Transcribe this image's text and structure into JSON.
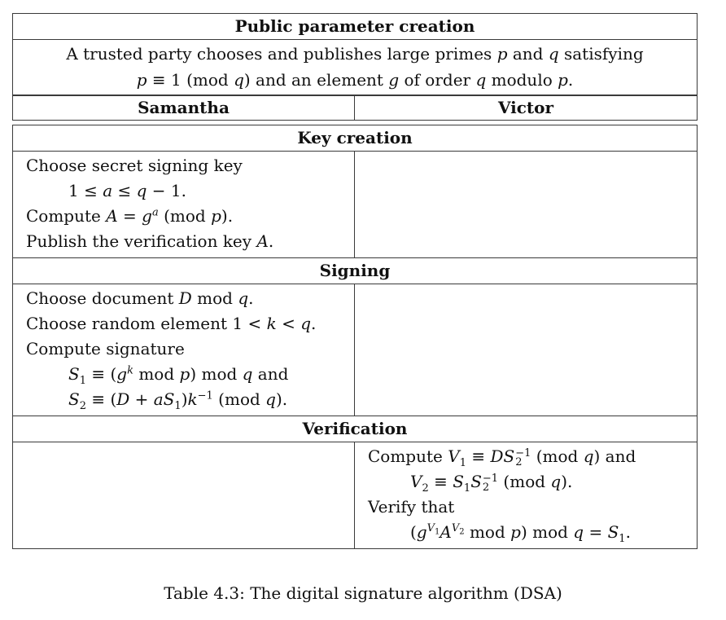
{
  "public": {
    "title": "Public parameter creation",
    "desc_line1_pre": "A trusted party chooses and publishes large primes ",
    "desc_line1_p": "p",
    "desc_line1_and": " and ",
    "desc_line1_q": "q",
    "desc_line1_post": " satisfying",
    "desc_line2_a": "p",
    "desc_line2_b": " ≡ 1 (mod ",
    "desc_line2_c": "q",
    "desc_line2_d": ") and an element ",
    "desc_line2_e": "g",
    "desc_line2_f": " of order ",
    "desc_line2_g": "q",
    "desc_line2_h": " modulo ",
    "desc_line2_i": "p",
    "desc_line2_j": "."
  },
  "parties": {
    "left": "Samantha",
    "right": "Victor"
  },
  "key_creation": {
    "title": "Key creation",
    "l1": "Choose secret signing key",
    "l2_a": "1 ≤ ",
    "l2_b": "a",
    "l2_c": " ≤ ",
    "l2_d": "q",
    "l2_e": " − 1.",
    "l3_a": "Compute ",
    "l3_b": "A",
    "l3_c": " = ",
    "l3_d": "g",
    "l3_sup": "a",
    "l3_e": " (mod ",
    "l3_f": "p",
    "l3_g": ").",
    "l4_a": "Publish the verification key ",
    "l4_b": "A",
    "l4_c": "."
  },
  "signing": {
    "title": "Signing",
    "l1_a": "Choose document ",
    "l1_b": "D",
    "l1_c": " mod ",
    "l1_d": "q",
    "l1_e": ".",
    "l2_a": "Choose random element 1 < ",
    "l2_b": "k",
    "l2_c": " < ",
    "l2_d": "q",
    "l2_e": ".",
    "l3": "Compute signature",
    "l4_a": "S",
    "l4_sub": "1",
    "l4_b": " ≡ (",
    "l4_c": "g",
    "l4_sup": "k",
    "l4_d": " mod ",
    "l4_e": "p",
    "l4_f": ") mod ",
    "l4_g": "q",
    "l4_h": " and",
    "l5_a": "S",
    "l5_sub": "2",
    "l5_b": " ≡ (",
    "l5_c": "D",
    "l5_d": " + ",
    "l5_e": "aS",
    "l5_sub2": "1",
    "l5_f": ")",
    "l5_g": "k",
    "l5_sup": "−1",
    "l5_h": " (mod ",
    "l5_i": "q",
    "l5_j": ")."
  },
  "verification": {
    "title": "Verification",
    "l1_a": "Compute ",
    "l1_b": "V",
    "l1_sub": "1",
    "l1_c": " ≡ ",
    "l1_d": "DS",
    "l1_sup": "−1",
    "l1_sub2": "2",
    "l1_e": " (mod ",
    "l1_f": "q",
    "l1_g": ") and",
    "l2_a": "V",
    "l2_sub": "2",
    "l2_b": " ≡ ",
    "l2_c": "S",
    "l2_sub2": "1",
    "l2_d": "S",
    "l2_sup": "−1",
    "l2_sub3": "2",
    "l2_e": " (mod ",
    "l2_f": "q",
    "l2_g": ").",
    "l3": "Verify that",
    "l4_a": "(",
    "l4_b": "g",
    "l4_sup1": "V",
    "l4_sup1sub": "1",
    "l4_c": "A",
    "l4_sup2": "V",
    "l4_sup2sub": "2",
    "l4_d": " mod ",
    "l4_e": "p",
    "l4_f": ") mod ",
    "l4_g": "q",
    "l4_h": " = ",
    "l4_i": "S",
    "l4_sub": "1",
    "l4_j": "."
  },
  "caption": "Table 4.3: The digital signature algorithm (DSA)"
}
